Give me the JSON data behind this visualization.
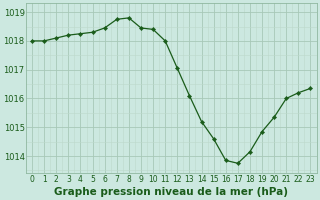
{
  "x": [
    0,
    1,
    2,
    3,
    4,
    5,
    6,
    7,
    8,
    9,
    10,
    11,
    12,
    13,
    14,
    15,
    16,
    17,
    18,
    19,
    20,
    21,
    22,
    23
  ],
  "y": [
    1018.0,
    1018.0,
    1018.1,
    1018.2,
    1018.25,
    1018.3,
    1018.45,
    1018.75,
    1018.8,
    1018.45,
    1018.4,
    1018.0,
    1017.05,
    1016.1,
    1015.2,
    1014.6,
    1013.85,
    1013.75,
    1014.15,
    1014.85,
    1015.35,
    1016.0,
    1016.2,
    1016.35
  ],
  "line_color": "#1a5c1a",
  "marker": "D",
  "marker_size": 2.2,
  "bg_color": "#cce8e0",
  "grid_color_major": "#a8c8b8",
  "grid_color_minor": "#bcd8cc",
  "title": "Graphe pression niveau de la mer (hPa)",
  "ylabel_ticks": [
    1014,
    1015,
    1016,
    1017,
    1018,
    1019
  ],
  "xtick_labels": [
    "0",
    "1",
    "2",
    "3",
    "4",
    "5",
    "6",
    "7",
    "8",
    "9",
    "10",
    "11",
    "12",
    "13",
    "14",
    "15",
    "16",
    "17",
    "18",
    "19",
    "20",
    "21",
    "22",
    "23"
  ],
  "ylim": [
    1013.4,
    1019.3
  ],
  "xlim": [
    -0.5,
    23.5
  ],
  "title_fontsize": 7.5,
  "tick_fontsize": 6.0,
  "text_color": "#1a5c1a",
  "spine_color": "#90b8a0"
}
